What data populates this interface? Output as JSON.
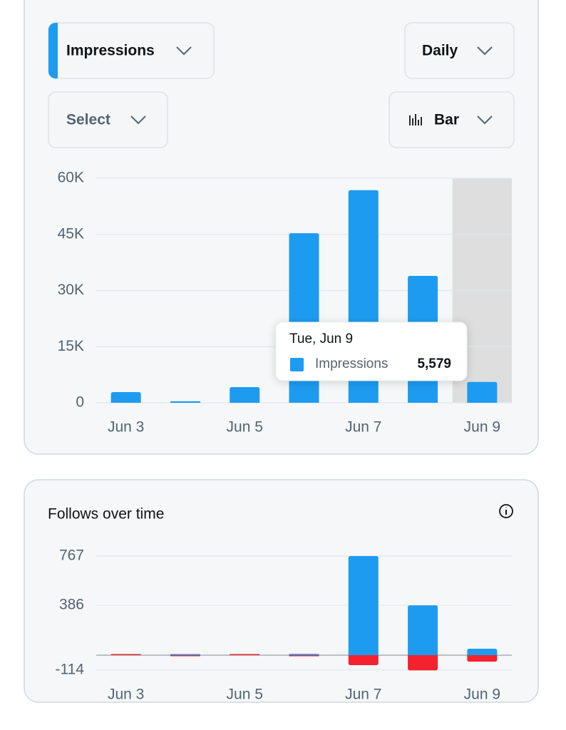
{
  "controls": {
    "metric": "Impressions",
    "interval": "Daily",
    "compare": "Select",
    "chart_style": "Bar"
  },
  "chart_data": [
    {
      "type": "bar",
      "categories": [
        "Jun 3",
        null,
        "Jun 5",
        null,
        "Jun 7",
        null,
        "Jun 9"
      ],
      "series": [
        {
          "name": "Impressions",
          "color": "#1d9bf0",
          "values": [
            2860,
            400,
            4200,
            45300,
            56800,
            33900,
            5579
          ],
          "value_labels": [
            null,
            null,
            null,
            null,
            null,
            null,
            "5,579"
          ]
        }
      ],
      "tooltip_title": "Tue, Jun 9",
      "ylim": [
        0,
        60000
      ],
      "yticks": [
        0,
        {
          "value": 15000,
          "label": "15K"
        },
        {
          "value": 30000,
          "label": "30K"
        },
        {
          "value": 45000,
          "label": "45K"
        },
        {
          "value": 60000,
          "label": "60K"
        }
      ],
      "grid": true
    },
    {
      "type": "bar",
      "title": "Follows over time",
      "categories": [
        "Jun 3",
        null,
        "Jun 5",
        null,
        "Jun 7",
        null,
        "Jun 9"
      ],
      "series": [
        {
          "color": "#1d9bf0",
          "values": [
            2,
            1,
            3,
            10,
            767,
            386,
            50
          ]
        },
        {
          "color": "#f4212e",
          "values": [
            0,
            -2,
            0,
            -3,
            -77,
            -118,
            -50
          ]
        }
      ],
      "ylim": [
        -125,
        767
      ],
      "yticks": [
        -114,
        386,
        767
      ],
      "grid": true
    }
  ]
}
